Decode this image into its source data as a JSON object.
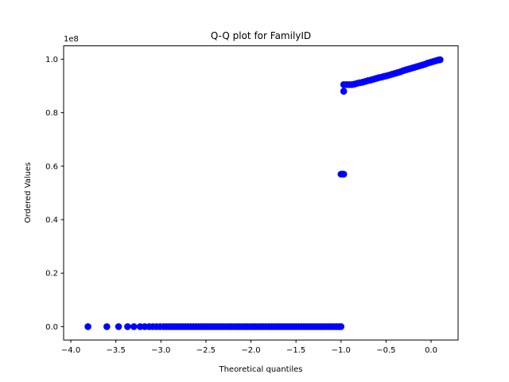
{
  "chart_data": {
    "type": "scatter",
    "title": "Q-Q plot for FamilyID",
    "xlabel": "Theoretical quantiles",
    "ylabel": "Ordered Values",
    "y_offset_label": "1e8",
    "xlim": [
      -4.08,
      0.3
    ],
    "ylim": [
      -0.05,
      1.05
    ],
    "x_ticks": [
      -4.0,
      -3.5,
      -3.0,
      -2.5,
      -2.0,
      -1.5,
      -1.0,
      -0.5,
      0.0
    ],
    "x_tick_labels": [
      "−4.0",
      "−3.5",
      "−3.0",
      "−2.5",
      "−2.0",
      "−1.5",
      "−1.0",
      "−0.5",
      "0.0"
    ],
    "y_ticks": [
      0.0,
      0.2,
      0.4,
      0.6,
      0.8,
      1.0
    ],
    "y_tick_labels": [
      "0.0",
      "0.2",
      "0.4",
      "0.6",
      "0.8",
      "1.0"
    ],
    "grid": false,
    "marker_color": "#0000ff",
    "series": [
      {
        "points": [
          [
            -3.81,
            0.0
          ],
          [
            -3.6,
            0.0
          ],
          [
            -3.47,
            0.0
          ],
          [
            -3.37,
            0.0
          ],
          [
            -3.3,
            0.0
          ],
          [
            -3.23,
            0.0
          ],
          [
            -3.18,
            0.0
          ],
          [
            -3.13,
            0.0
          ],
          [
            -3.09,
            0.0
          ],
          [
            -3.05,
            0.0
          ],
          [
            -3.01,
            0.0
          ],
          [
            -2.97,
            0.0
          ],
          [
            -2.94,
            0.0
          ],
          [
            -2.91,
            0.0
          ],
          [
            -2.88,
            0.0
          ],
          [
            -2.85,
            0.0
          ],
          [
            -2.82,
            0.0
          ],
          [
            -2.79,
            0.0
          ],
          [
            -2.76,
            0.0
          ],
          [
            -2.73,
            0.0
          ],
          [
            -2.7,
            0.0
          ],
          [
            -2.67,
            0.0
          ],
          [
            -2.64,
            0.0
          ],
          [
            -2.61,
            0.0
          ],
          [
            -2.58,
            0.0
          ],
          [
            -2.55,
            0.0
          ],
          [
            -2.52,
            0.0
          ],
          [
            -2.49,
            0.0
          ],
          [
            -2.46,
            0.0
          ],
          [
            -2.43,
            0.0
          ],
          [
            -2.4,
            0.0
          ],
          [
            -2.37,
            0.0
          ],
          [
            -2.34,
            0.0
          ],
          [
            -2.31,
            0.0
          ],
          [
            -2.28,
            0.0
          ],
          [
            -2.25,
            0.0
          ],
          [
            -2.22,
            0.0
          ],
          [
            -2.19,
            0.0
          ],
          [
            -2.16,
            0.0
          ],
          [
            -2.13,
            0.0
          ],
          [
            -2.1,
            0.0
          ],
          [
            -2.07,
            0.0
          ],
          [
            -2.04,
            0.0
          ],
          [
            -2.01,
            0.0
          ],
          [
            -1.98,
            0.0
          ],
          [
            -1.95,
            0.0
          ],
          [
            -1.92,
            0.0
          ],
          [
            -1.89,
            0.0
          ],
          [
            -1.86,
            0.0
          ],
          [
            -1.83,
            0.0
          ],
          [
            -1.8,
            0.0
          ],
          [
            -1.77,
            0.0
          ],
          [
            -1.74,
            0.0
          ],
          [
            -1.71,
            0.0
          ],
          [
            -1.68,
            0.0
          ],
          [
            -1.65,
            0.0
          ],
          [
            -1.62,
            0.0
          ],
          [
            -1.59,
            0.0
          ],
          [
            -1.56,
            0.0
          ],
          [
            -1.53,
            0.0
          ],
          [
            -1.5,
            0.0
          ],
          [
            -1.47,
            0.0
          ],
          [
            -1.44,
            0.0
          ],
          [
            -1.41,
            0.0
          ],
          [
            -1.38,
            0.0
          ],
          [
            -1.35,
            0.0
          ],
          [
            -1.32,
            0.0
          ],
          [
            -1.29,
            0.0
          ],
          [
            -1.26,
            0.0
          ],
          [
            -1.23,
            0.0
          ],
          [
            -1.2,
            0.0
          ],
          [
            -1.17,
            0.0
          ],
          [
            -1.14,
            0.0
          ],
          [
            -1.11,
            0.0
          ],
          [
            -1.08,
            0.0
          ],
          [
            -1.05,
            0.0
          ],
          [
            -1.02,
            0.0
          ],
          [
            -1.0,
            0.0
          ],
          [
            -1.0,
            0.57
          ],
          [
            -0.99,
            0.57
          ],
          [
            -0.98,
            0.57
          ],
          [
            -0.97,
            0.57
          ],
          [
            -0.97,
            0.88
          ],
          [
            -0.97,
            0.905
          ],
          [
            -0.94,
            0.905
          ],
          [
            -0.91,
            0.905
          ],
          [
            -0.88,
            0.905
          ],
          [
            -0.85,
            0.907
          ],
          [
            -0.82,
            0.91
          ],
          [
            -0.79,
            0.912
          ],
          [
            -0.76,
            0.914
          ],
          [
            -0.73,
            0.917
          ],
          [
            -0.7,
            0.92
          ],
          [
            -0.67,
            0.922
          ],
          [
            -0.64,
            0.925
          ],
          [
            -0.61,
            0.928
          ],
          [
            -0.58,
            0.931
          ],
          [
            -0.55,
            0.933
          ],
          [
            -0.52,
            0.936
          ],
          [
            -0.49,
            0.938
          ],
          [
            -0.46,
            0.941
          ],
          [
            -0.43,
            0.944
          ],
          [
            -0.4,
            0.947
          ],
          [
            -0.37,
            0.95
          ],
          [
            -0.34,
            0.953
          ],
          [
            -0.31,
            0.957
          ],
          [
            -0.28,
            0.96
          ],
          [
            -0.25,
            0.963
          ],
          [
            -0.22,
            0.966
          ],
          [
            -0.19,
            0.969
          ],
          [
            -0.16,
            0.972
          ],
          [
            -0.13,
            0.975
          ],
          [
            -0.1,
            0.978
          ],
          [
            -0.07,
            0.981
          ],
          [
            -0.04,
            0.985
          ],
          [
            -0.01,
            0.988
          ],
          [
            0.02,
            0.991
          ],
          [
            0.05,
            0.994
          ],
          [
            0.08,
            0.997
          ],
          [
            0.1,
            0.998
          ]
        ]
      }
    ]
  }
}
